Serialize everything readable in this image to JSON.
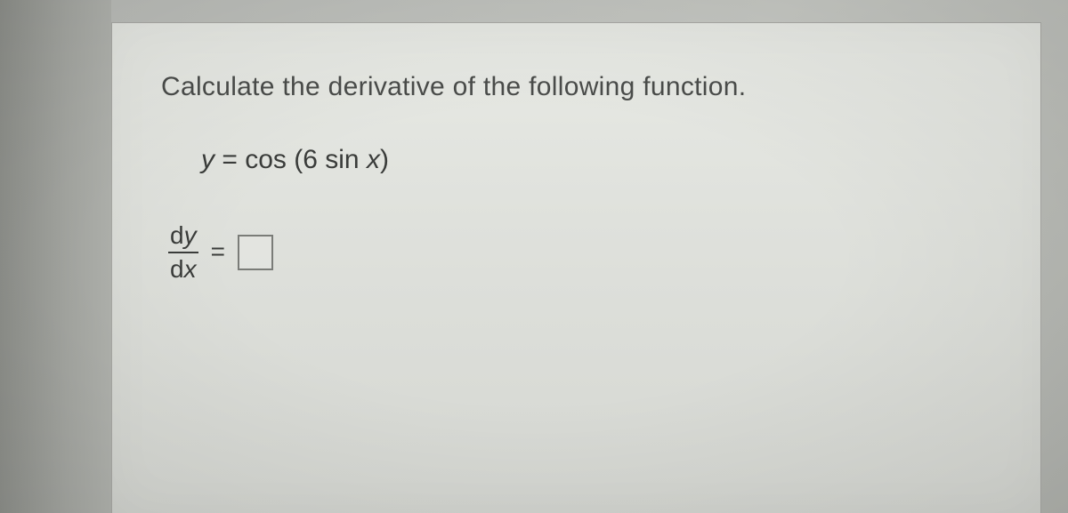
{
  "problem": {
    "prompt": "Calculate the derivative of the following function.",
    "equation": {
      "lhs_var": "y",
      "eq": " = ",
      "rhs_func": "cos ",
      "rhs_open": "(",
      "rhs_coeff": "6 ",
      "rhs_inner": "sin ",
      "rhs_innervar": "x",
      "rhs_close": ")"
    },
    "answer": {
      "fraction_num_d": "d",
      "fraction_num_var": "y",
      "fraction_den_d": "d",
      "fraction_den_var": "x",
      "equals": "="
    }
  },
  "style": {
    "page_bg": "#e3e5e0",
    "outer_bg": "#b5b7b2",
    "text_color": "#3a3c3a",
    "prompt_color": "#4a4c4a",
    "box_border": "#7a7c78",
    "prompt_fontsize": 30,
    "equation_fontsize": 30,
    "fraction_fontsize": 28,
    "answer_box_size": 40
  }
}
